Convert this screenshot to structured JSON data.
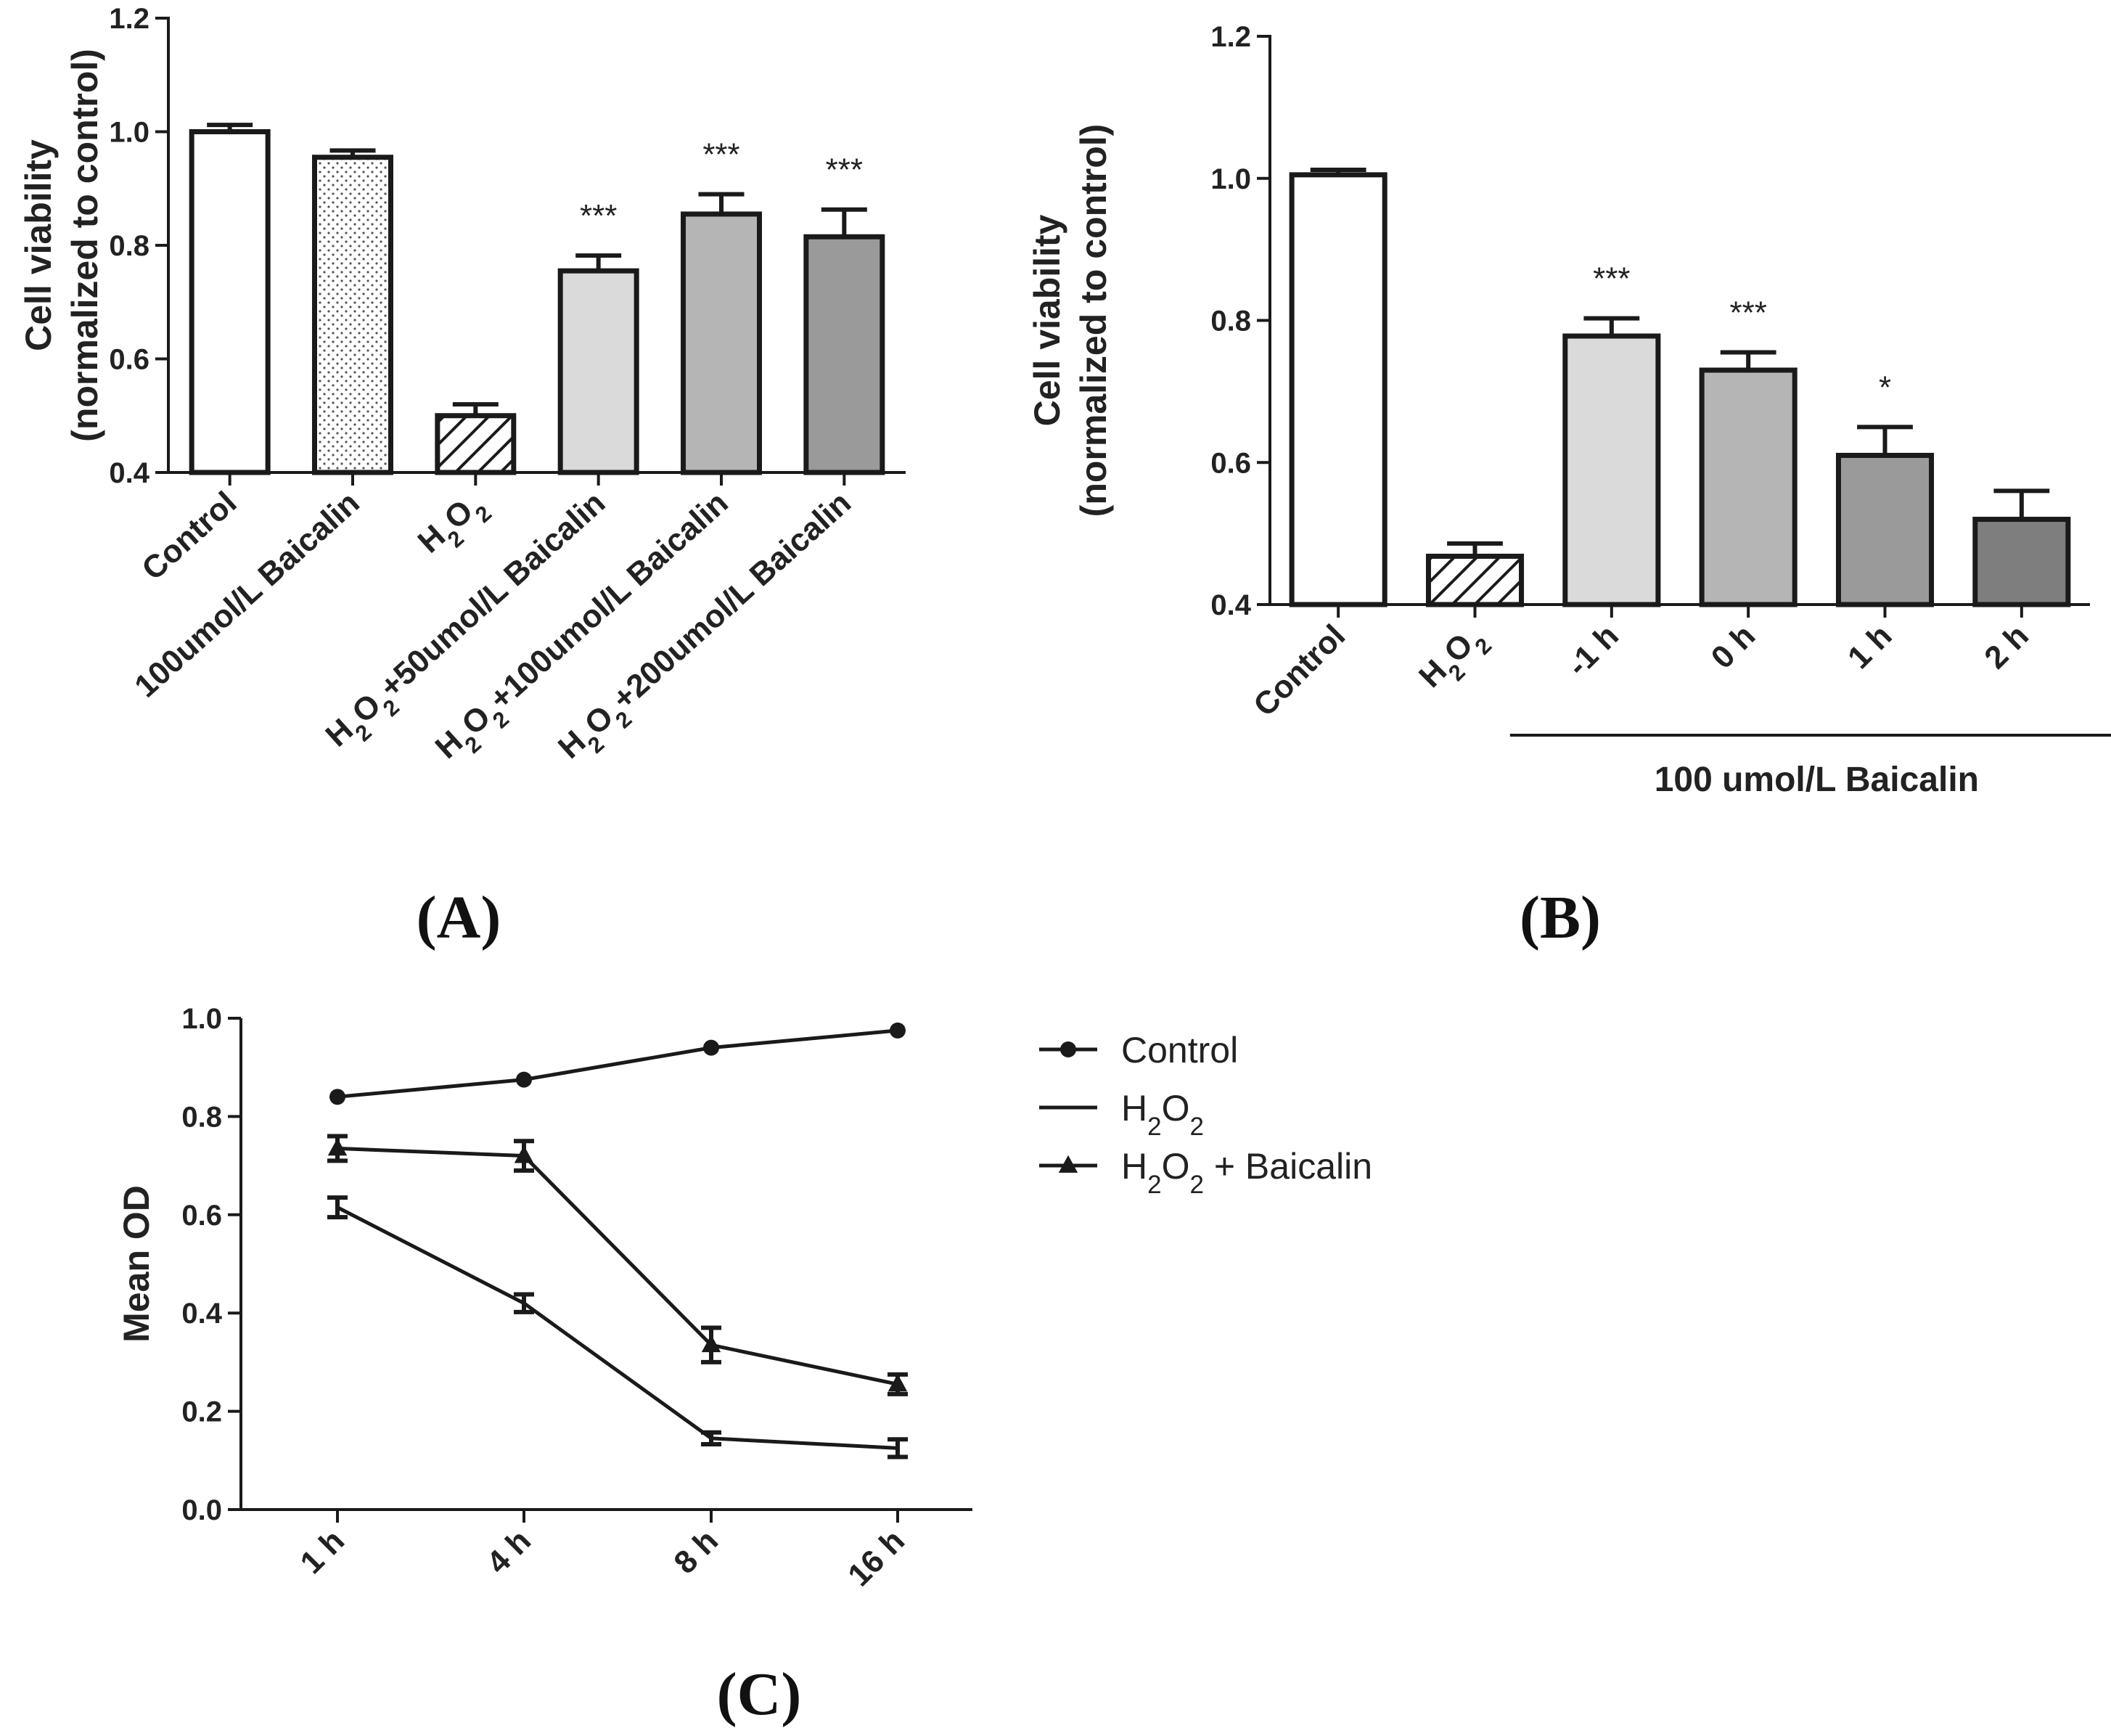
{
  "panel_labels": {
    "A": {
      "open": "(",
      "letter": "A",
      "close": ")"
    },
    "B": {
      "open": "(",
      "letter": "B",
      "close": ")"
    },
    "C": {
      "open": "(",
      "letter": "C",
      "close": ")"
    }
  },
  "chart_data": [
    {
      "id": "A",
      "type": "bar",
      "ylabel_line1": "Cell viability",
      "ylabel_line2": "(normalized to control)",
      "ylim": [
        0.4,
        1.2
      ],
      "yticks": [
        "0.4",
        "0.6",
        "0.8",
        "1.0",
        "1.2"
      ],
      "categories": [
        [
          {
            "t": "Control"
          }
        ],
        [
          {
            "t": "100umol/L Baicalin"
          }
        ],
        [
          {
            "t": "H"
          },
          {
            "t": "2",
            "sub": true
          },
          {
            "t": "O"
          },
          {
            "t": "2",
            "sub": true
          }
        ],
        [
          {
            "t": "H"
          },
          {
            "t": "2",
            "sub": true
          },
          {
            "t": "O"
          },
          {
            "t": "2",
            "sub": true
          },
          {
            "t": "+50umol/L Baicalin"
          }
        ],
        [
          {
            "t": "H"
          },
          {
            "t": "2",
            "sub": true
          },
          {
            "t": "O"
          },
          {
            "t": "2",
            "sub": true
          },
          {
            "t": "+100umol/L Baicalin"
          }
        ],
        [
          {
            "t": "H"
          },
          {
            "t": "2",
            "sub": true
          },
          {
            "t": "O"
          },
          {
            "t": "2",
            "sub": true
          },
          {
            "t": "+200umol/L Baicalin"
          }
        ]
      ],
      "values": [
        1.0,
        0.955,
        0.5,
        0.755,
        0.855,
        0.815
      ],
      "errors": [
        0.012,
        0.012,
        0.02,
        0.027,
        0.035,
        0.048
      ],
      "significance": [
        "",
        "",
        "",
        "***",
        "***",
        "***"
      ],
      "fills": [
        "white",
        "dots",
        "hatch",
        "#dadada",
        "#b5b5b5",
        "#9a9a9a"
      ]
    },
    {
      "id": "B",
      "type": "bar",
      "ylabel_line1": "Cell viability",
      "ylabel_line2": "(normalized to control)",
      "ylim": [
        0.4,
        1.2
      ],
      "yticks": [
        "0.4",
        "0.6",
        "0.8",
        "1.0",
        "1.2"
      ],
      "categories": [
        [
          {
            "t": "Control"
          }
        ],
        [
          {
            "t": "H"
          },
          {
            "t": "2",
            "sub": true
          },
          {
            "t": "O"
          },
          {
            "t": "2",
            "sub": true
          }
        ],
        [
          {
            "t": "-1 h"
          }
        ],
        [
          {
            "t": "0 h"
          }
        ],
        [
          {
            "t": "1 h"
          }
        ],
        [
          {
            "t": "2 h"
          }
        ]
      ],
      "values": [
        1.005,
        0.468,
        0.778,
        0.73,
        0.61,
        0.52
      ],
      "errors": [
        0.007,
        0.018,
        0.025,
        0.025,
        0.04,
        0.04
      ],
      "significance": [
        "",
        "",
        "***",
        "***",
        "*",
        ""
      ],
      "fills": [
        "white",
        "hatch",
        "#dadada",
        "#b5b5b5",
        "#9a9a9a",
        "#7e7e7e"
      ],
      "group_label": "100 umol/L Baicalin"
    },
    {
      "id": "C",
      "type": "line",
      "ylabel": "Mean OD",
      "ylim": [
        0.0,
        1.0
      ],
      "yticks": [
        "0.0",
        "0.2",
        "0.4",
        "0.6",
        "0.8",
        "1.0"
      ],
      "categories": [
        "1 h",
        "4 h",
        "8 h",
        "16 h"
      ],
      "series": [
        {
          "name": [
            {
              "t": "Control"
            }
          ],
          "marker": "circle",
          "values": [
            0.84,
            0.875,
            0.94,
            0.975
          ],
          "errors": [
            0,
            0,
            0,
            0
          ]
        },
        {
          "name": [
            {
              "t": "H"
            },
            {
              "t": "2",
              "sub": true
            },
            {
              "t": "O"
            },
            {
              "t": "2",
              "sub": true
            }
          ],
          "marker": "none",
          "values": [
            0.615,
            0.42,
            0.145,
            0.125
          ],
          "errors": [
            0.02,
            0.018,
            0.012,
            0.018
          ]
        },
        {
          "name": [
            {
              "t": "H"
            },
            {
              "t": "2",
              "sub": true
            },
            {
              "t": "O"
            },
            {
              "t": "2",
              "sub": true
            },
            {
              "t": " + Baicalin"
            }
          ],
          "marker": "triangle",
          "values": [
            0.735,
            0.72,
            0.335,
            0.255
          ],
          "errors": [
            0.025,
            0.03,
            0.035,
            0.02
          ]
        }
      ]
    }
  ]
}
